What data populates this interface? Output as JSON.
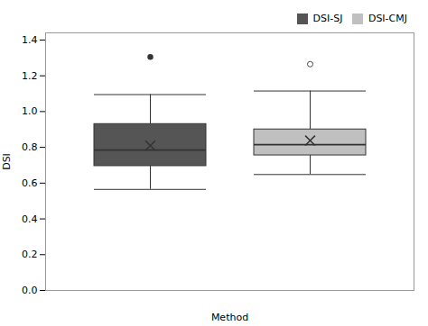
{
  "chart_data": {
    "type": "box",
    "xlabel": "Method",
    "ylabel": "DSI",
    "ylim": [
      0.0,
      1.44
    ],
    "yticks": [
      {
        "value": 0.0,
        "label": "0.0"
      },
      0.2,
      0.4,
      0.6,
      0.8,
      {
        "value": 1.0,
        "label": "1.0"
      },
      1.2,
      1.4
    ],
    "grid": false,
    "legend": "upper right",
    "tick_labels": "y",
    "series": [
      {
        "name": "DSI-SJ",
        "color": "#555555",
        "whisker_min": 0.565,
        "q1": 0.695,
        "median": 0.785,
        "q3": 0.93,
        "whisker_max": 1.095,
        "mean": 0.81,
        "outliers": [
          1.305
        ],
        "marker": "filled"
      },
      {
        "name": "DSI-CMJ",
        "color": "#c0c0c0",
        "whisker_min": 0.648,
        "q1": 0.755,
        "median": 0.815,
        "q3": 0.9,
        "whisker_max": 1.115,
        "mean": 0.838,
        "outliers": [
          1.265
        ],
        "marker": "open"
      }
    ]
  }
}
